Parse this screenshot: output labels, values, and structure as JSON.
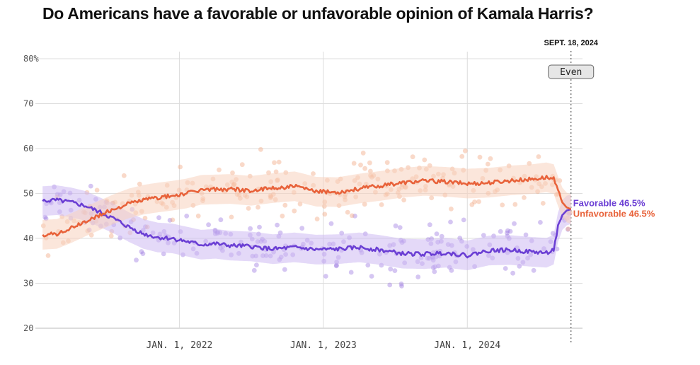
{
  "title": "Do Americans have a favorable or unfavorable opinion of Kamala Harris?",
  "chart_data": {
    "type": "line",
    "title": "Do Americans have a favorable or unfavorable opinion of Kamala Harris?",
    "ylim": [
      20,
      80
    ],
    "y_ticks": [
      20,
      30,
      40,
      50,
      60,
      70,
      80
    ],
    "y_tick_labels": [
      "20",
      "30",
      "40",
      "50",
      "60",
      "70",
      "80%"
    ],
    "xlim": [
      2021.0,
      2024.8
    ],
    "x_ticks": [
      {
        "value": 2022.0,
        "label": "JAN. 1, 2022"
      },
      {
        "value": 2023.0,
        "label": "JAN. 1, 2023"
      },
      {
        "value": 2024.0,
        "label": "JAN. 1, 2024"
      }
    ],
    "current_date": {
      "value": 2024.72,
      "label": "SEPT. 18, 2024",
      "badge": "Even"
    },
    "series": [
      {
        "name": "Favorable",
        "end_label": "Favorable 46.5%",
        "color": "#6b3fd4",
        "band_color": "#cdbaf3",
        "dot_color": "#9a77e0",
        "x": [
          2021.05,
          2021.15,
          2021.25,
          2021.35,
          2021.45,
          2021.55,
          2021.65,
          2021.75,
          2021.85,
          2021.95,
          2022.05,
          2022.15,
          2022.25,
          2022.35,
          2022.5,
          2022.65,
          2022.8,
          2022.95,
          2023.1,
          2023.25,
          2023.4,
          2023.55,
          2023.7,
          2023.85,
          2024.0,
          2024.15,
          2024.3,
          2024.45,
          2024.55,
          2024.6,
          2024.63,
          2024.66,
          2024.69,
          2024.72
        ],
        "values": [
          48.3,
          48.5,
          48.0,
          47.2,
          45.8,
          44.3,
          42.5,
          41.0,
          40.2,
          40.0,
          39.3,
          38.6,
          38.8,
          38.4,
          38.2,
          37.6,
          38.0,
          37.5,
          37.6,
          38.0,
          37.4,
          36.6,
          36.5,
          36.8,
          36.2,
          37.3,
          37.4,
          37.0,
          36.8,
          37.5,
          42.5,
          45.2,
          46.2,
          46.5
        ]
      },
      {
        "name": "Unfavorable",
        "end_label": "Unfavorable 46.5%",
        "color": "#e8623a",
        "band_color": "#f8d2bd",
        "dot_color": "#f0a57f",
        "x": [
          2021.05,
          2021.15,
          2021.25,
          2021.35,
          2021.45,
          2021.55,
          2021.65,
          2021.75,
          2021.85,
          2021.95,
          2022.05,
          2022.15,
          2022.25,
          2022.35,
          2022.5,
          2022.65,
          2022.8,
          2022.95,
          2023.1,
          2023.25,
          2023.4,
          2023.55,
          2023.7,
          2023.85,
          2024.0,
          2024.15,
          2024.3,
          2024.45,
          2024.55,
          2024.6,
          2024.63,
          2024.66,
          2024.69,
          2024.72
        ],
        "values": [
          40.8,
          41.0,
          42.3,
          43.8,
          45.2,
          46.6,
          47.8,
          48.6,
          49.1,
          49.5,
          50.0,
          50.8,
          50.9,
          51.0,
          50.6,
          51.2,
          51.6,
          50.4,
          50.3,
          51.1,
          51.7,
          52.4,
          52.8,
          52.6,
          52.2,
          52.4,
          52.9,
          53.2,
          53.6,
          53.2,
          50.5,
          48.0,
          46.9,
          46.5
        ]
      }
    ]
  }
}
